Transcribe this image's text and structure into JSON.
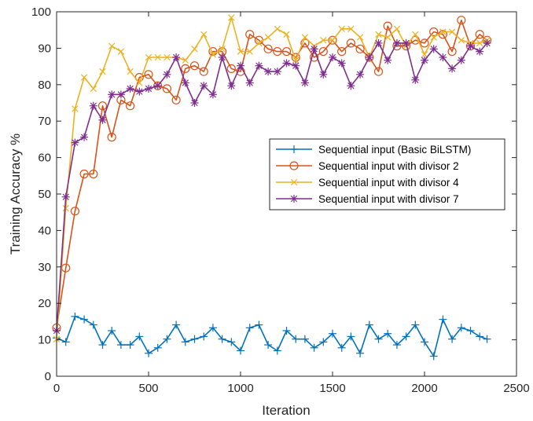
{
  "chart_data": {
    "type": "line",
    "title": "",
    "xlabel": "Iteration",
    "ylabel": "Training Accuracy %",
    "xlim": [
      0,
      2500
    ],
    "ylim": [
      0,
      100
    ],
    "xticks": [
      0,
      500,
      1000,
      1500,
      2000,
      2500
    ],
    "yticks": [
      0,
      10,
      20,
      30,
      40,
      50,
      60,
      70,
      80,
      90,
      100
    ],
    "grid": false,
    "legend_position": "center-right",
    "x": [
      0,
      50,
      100,
      150,
      200,
      250,
      300,
      350,
      400,
      450,
      500,
      550,
      600,
      650,
      700,
      750,
      800,
      850,
      900,
      950,
      1000,
      1050,
      1100,
      1150,
      1200,
      1250,
      1300,
      1350,
      1400,
      1450,
      1500,
      1550,
      1600,
      1650,
      1700,
      1750,
      1800,
      1850,
      1900,
      1950,
      2000,
      2050,
      2100,
      2150,
      2200,
      2250,
      2300,
      2340
    ],
    "series": [
      {
        "name": "Sequential input (Basic BiLSTM)",
        "color": "#0072BD",
        "marker": "plus",
        "values": [
          10.5,
          9.4,
          16.4,
          15.6,
          14.1,
          8.6,
          12.5,
          8.6,
          8.6,
          10.9,
          6.3,
          7.8,
          10.2,
          14.1,
          9.4,
          10.2,
          10.9,
          13.3,
          10.2,
          9.4,
          7.0,
          13.3,
          14.1,
          8.6,
          7.0,
          12.5,
          10.2,
          10.2,
          7.8,
          9.4,
          11.7,
          7.8,
          10.9,
          6.3,
          14.1,
          10.2,
          11.7,
          8.6,
          10.9,
          14.1,
          9.4,
          5.5,
          15.6,
          10.2,
          13.3,
          12.5,
          10.9,
          10.2
        ]
      },
      {
        "name": "Sequential input with divisor 2",
        "color": "#D95319",
        "marker": "circle",
        "values": [
          13.3,
          29.7,
          45.3,
          55.5,
          55.5,
          74.2,
          65.6,
          75.8,
          74.2,
          82.0,
          82.8,
          79.7,
          78.9,
          75.8,
          84.4,
          85.2,
          83.6,
          89.1,
          89.1,
          84.4,
          83.6,
          93.8,
          92.2,
          89.8,
          89.1,
          89.1,
          87.5,
          91.4,
          87.5,
          89.1,
          92.2,
          89.1,
          91.4,
          89.8,
          87.5,
          83.6,
          96.1,
          90.6,
          90.6,
          92.2,
          91.4,
          94.5,
          93.8,
          89.1,
          97.7,
          90.6,
          93.8,
          92.2
        ]
      },
      {
        "name": "Sequential input with divisor 4",
        "color": "#EDB120",
        "marker": "x",
        "values": [
          10.2,
          46.1,
          73.4,
          82.0,
          78.9,
          83.6,
          90.6,
          89.1,
          83.6,
          80.5,
          87.5,
          87.5,
          87.5,
          87.5,
          86.7,
          89.8,
          93.8,
          88.3,
          89.8,
          98.4,
          89.1,
          89.1,
          91.4,
          93.0,
          95.3,
          93.8,
          86.7,
          93.0,
          90.6,
          92.2,
          92.2,
          95.3,
          95.3,
          93.0,
          87.5,
          93.8,
          93.0,
          95.3,
          90.6,
          93.8,
          88.3,
          93.0,
          94.5,
          94.5,
          92.2,
          91.4,
          91.4,
          92.2
        ]
      },
      {
        "name": "Sequential input with divisor 7",
        "color": "#7E2F8E",
        "marker": "star",
        "values": [
          12.5,
          49.2,
          64.1,
          65.6,
          74.2,
          70.3,
          77.3,
          77.3,
          78.9,
          78.1,
          78.9,
          79.7,
          82.8,
          87.5,
          80.5,
          75.0,
          79.7,
          77.3,
          87.5,
          79.7,
          85.2,
          80.5,
          85.2,
          83.6,
          83.6,
          85.9,
          85.2,
          80.5,
          89.8,
          82.8,
          87.5,
          85.9,
          79.7,
          82.8,
          87.5,
          91.4,
          86.7,
          91.4,
          91.4,
          81.3,
          86.7,
          89.8,
          87.5,
          84.4,
          86.7,
          90.6,
          89.1,
          91.4
        ]
      }
    ]
  }
}
